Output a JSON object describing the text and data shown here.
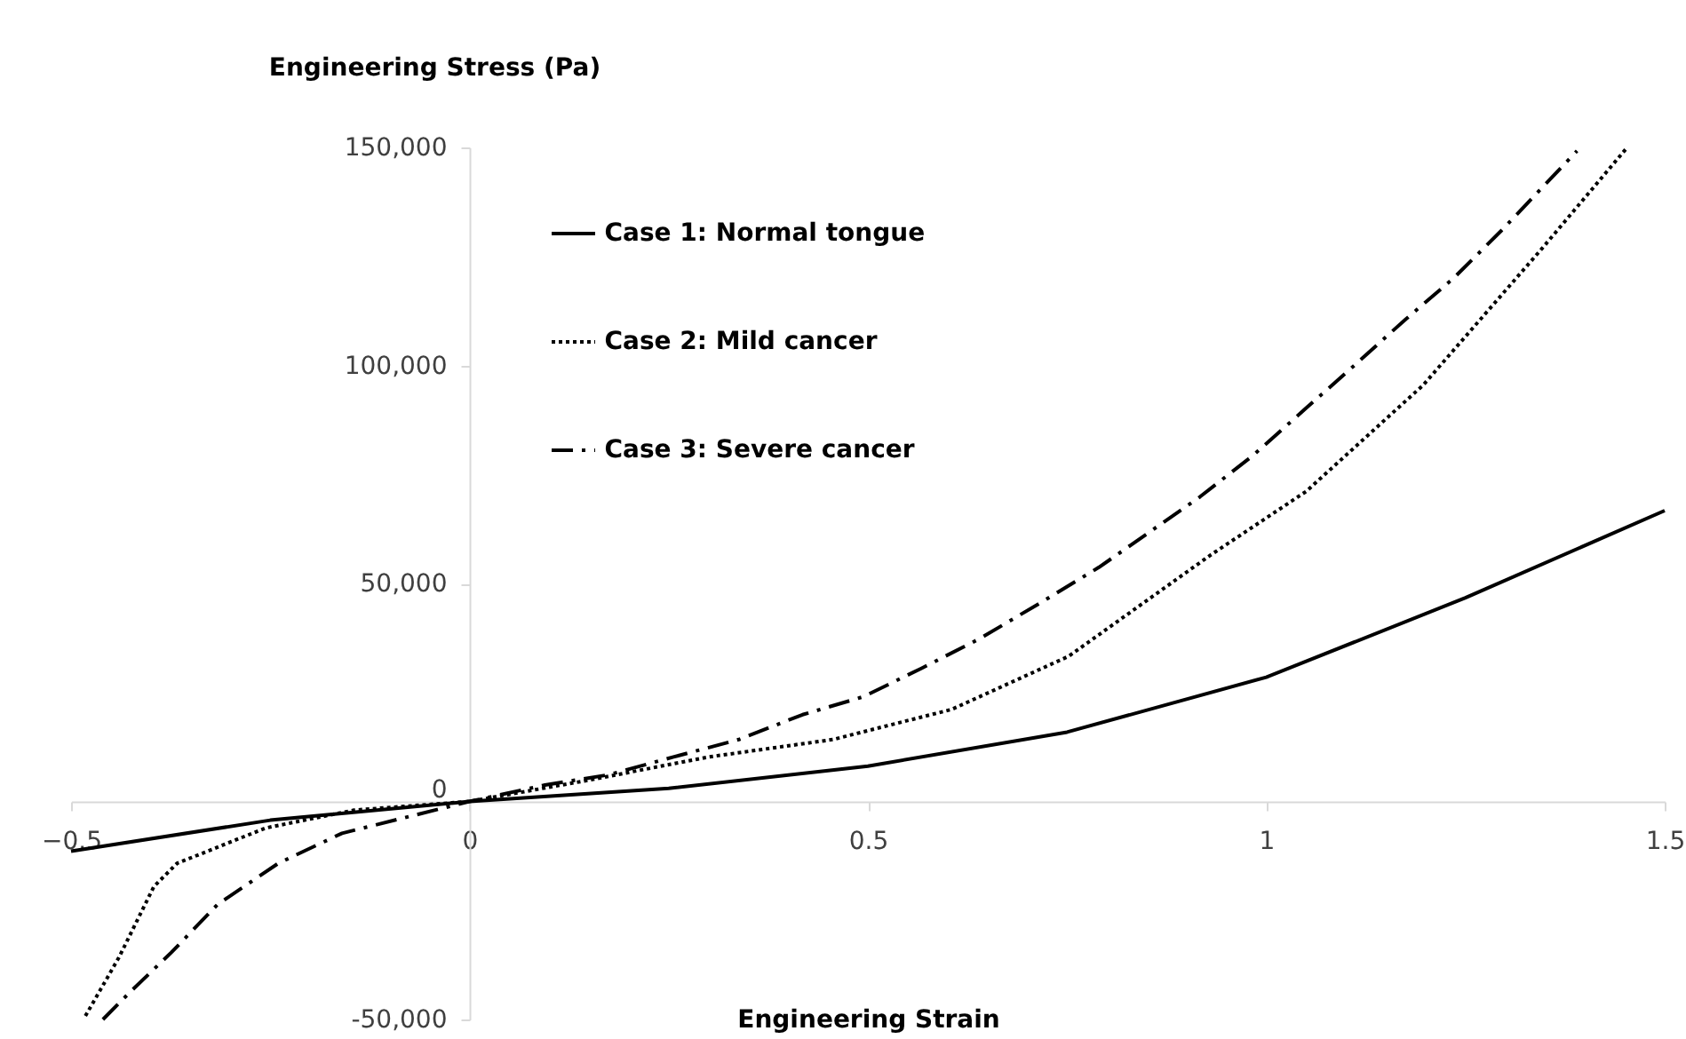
{
  "chart_data": {
    "type": "line",
    "xlabel": "Engineering Strain",
    "ylabel": "Engineering Stress (Pa)",
    "xlim": [
      -0.5,
      1.5
    ],
    "xticks": [
      -0.5,
      0,
      0.5,
      1,
      1.5
    ],
    "ylim": [
      -50000,
      150000
    ],
    "yticks": [
      {
        "value": -50000,
        "label": "-50,000"
      },
      0,
      {
        "value": 50000,
        "label": "50,000"
      },
      {
        "value": 100000,
        "label": "100,000"
      },
      {
        "value": 150000,
        "label": "150,000"
      }
    ],
    "grid": false,
    "legend": "top left",
    "marker": "none",
    "series": [
      {
        "name": "Case 1: Normal tongue",
        "color": "#000000",
        "line_style": "solid",
        "x": [
          -0.5,
          -0.25,
          0,
          0.25,
          0.5,
          0.75,
          1,
          1.25,
          1.5
        ],
        "values": [
          -11400,
          -4300,
          0,
          3000,
          8100,
          15900,
          28500,
          46700,
          66700
        ]
      },
      {
        "name": "Case 2: Mild cancer",
        "color": "#000000",
        "line_style": "dotted",
        "x": [
          -0.482,
          -0.44,
          -0.396,
          -0.367,
          -0.256,
          -0.145,
          0,
          0.15,
          0.3,
          0.456,
          0.605,
          0.752,
          0.93,
          1.05,
          1.197,
          1.346,
          1.453
        ],
        "values": [
          -49200,
          -35800,
          -19500,
          -14200,
          -6100,
          -2000,
          0,
          4900,
          10200,
          14200,
          21100,
          33300,
          56500,
          71100,
          95500,
          126800,
          150000
        ]
      },
      {
        "name": "Case 3: Severe cancer",
        "color": "#000000",
        "line_style": "dashdot",
        "x": [
          -0.46,
          -0.427,
          -0.374,
          -0.316,
          -0.24,
          -0.16,
          0,
          0.093,
          0.174,
          0.256,
          0.338,
          0.418,
          0.494,
          0.567,
          0.641,
          0.716,
          0.79,
          0.917,
          0.983,
          1.05,
          1.108,
          1.175,
          1.235,
          1.295,
          1.39
        ],
        "values": [
          -50000,
          -43900,
          -34600,
          -23600,
          -14200,
          -7300,
          0,
          3700,
          6100,
          10200,
          14200,
          19900,
          24000,
          30500,
          37400,
          45500,
          53700,
          69900,
          79300,
          90200,
          99600,
          110600,
          120000,
          130900,
          149200
        ]
      }
    ]
  }
}
